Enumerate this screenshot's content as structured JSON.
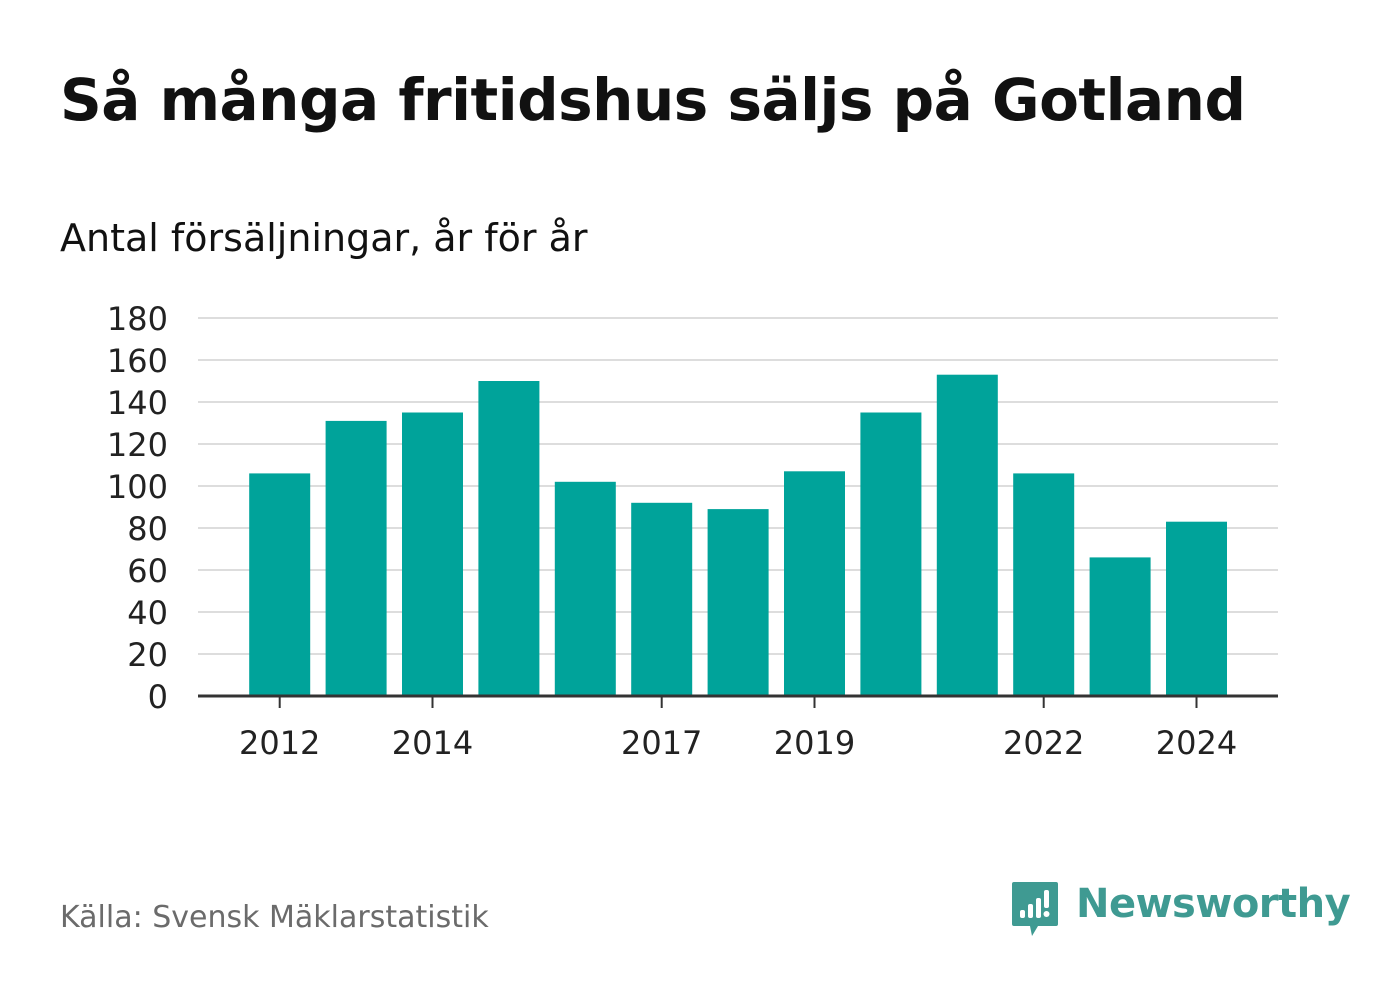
{
  "title": "Så många fritidshus säljs på Gotland",
  "subtitle": "Antal försäljningar, år för år",
  "source": "Källa: Svensk Mäklarstatistik",
  "brand": {
    "name": "Newsworthy",
    "icon": "newsworthy-logo-icon",
    "color": "#3f9a92"
  },
  "colors": {
    "bar": "#00a39a",
    "grid": "#dddddd",
    "axis": "#333333",
    "tick_text": "#222222"
  },
  "chart_data": {
    "type": "bar",
    "categories": [
      "2012",
      "2013",
      "2014",
      "2015",
      "2016",
      "2017",
      "2018",
      "2019",
      "2020",
      "2021",
      "2022",
      "2023",
      "2024"
    ],
    "values": [
      106,
      131,
      135,
      150,
      102,
      92,
      89,
      107,
      135,
      153,
      106,
      66,
      83
    ],
    "x_tick_labels": [
      "2012",
      "2014",
      "2017",
      "2019",
      "2022",
      "2024"
    ],
    "y_ticks": [
      0,
      20,
      40,
      60,
      80,
      100,
      120,
      140,
      160,
      180
    ],
    "ylim": [
      0,
      180
    ],
    "grid": true,
    "xlabel": "",
    "ylabel": ""
  }
}
